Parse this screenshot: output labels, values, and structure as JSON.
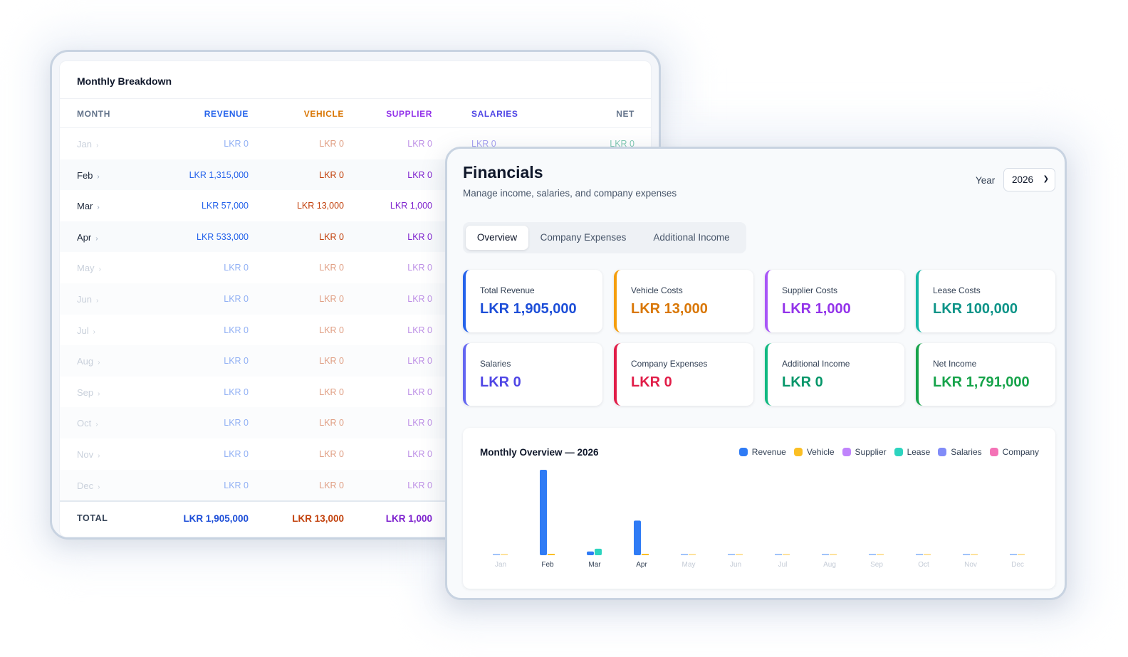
{
  "breakdown": {
    "title": "Monthly Breakdown",
    "headers": {
      "month": "MONTH",
      "revenue": "REVENUE",
      "vehicle": "VEHICLE",
      "supplier": "SUPPLIER",
      "salaries": "SALARIES",
      "net": "NET"
    },
    "rows": [
      {
        "month": "Jan",
        "revenue": "LKR 0",
        "vehicle": "LKR 0",
        "supplier": "LKR 0",
        "salaries": "LKR 0",
        "net": "LKR 0",
        "dim": true
      },
      {
        "month": "Feb",
        "revenue": "LKR 1,315,000",
        "vehicle": "LKR 0",
        "supplier": "LKR 0",
        "dim": false
      },
      {
        "month": "Mar",
        "revenue": "LKR 57,000",
        "vehicle": "LKR 13,000",
        "supplier": "LKR 1,000",
        "dim": false
      },
      {
        "month": "Apr",
        "revenue": "LKR 533,000",
        "vehicle": "LKR 0",
        "supplier": "LKR 0",
        "dim": false
      },
      {
        "month": "May",
        "revenue": "LKR 0",
        "vehicle": "LKR 0",
        "supplier": "LKR 0",
        "dim": true
      },
      {
        "month": "Jun",
        "revenue": "LKR 0",
        "vehicle": "LKR 0",
        "supplier": "LKR 0",
        "dim": true
      },
      {
        "month": "Jul",
        "revenue": "LKR 0",
        "vehicle": "LKR 0",
        "supplier": "LKR 0",
        "dim": true
      },
      {
        "month": "Aug",
        "revenue": "LKR 0",
        "vehicle": "LKR 0",
        "supplier": "LKR 0",
        "dim": true
      },
      {
        "month": "Sep",
        "revenue": "LKR 0",
        "vehicle": "LKR 0",
        "supplier": "LKR 0",
        "dim": true
      },
      {
        "month": "Oct",
        "revenue": "LKR 0",
        "vehicle": "LKR 0",
        "supplier": "LKR 0",
        "dim": true
      },
      {
        "month": "Nov",
        "revenue": "LKR 0",
        "vehicle": "LKR 0",
        "supplier": "LKR 0",
        "dim": true
      },
      {
        "month": "Dec",
        "revenue": "LKR 0",
        "vehicle": "LKR 0",
        "supplier": "LKR 0",
        "dim": true
      }
    ],
    "total": {
      "label": "TOTAL",
      "revenue": "LKR 1,905,000",
      "vehicle": "LKR 13,000",
      "supplier": "LKR 1,000"
    }
  },
  "financials": {
    "title": "Financials",
    "subtitle": "Manage income, salaries, and company expenses",
    "year_label": "Year",
    "year_value": "2026",
    "tabs": [
      {
        "label": "Overview",
        "active": true
      },
      {
        "label": "Company Expenses",
        "active": false
      },
      {
        "label": "Additional Income",
        "active": false
      }
    ],
    "cards": [
      {
        "label": "Total Revenue",
        "value": "LKR 1,905,000",
        "color": "#2563eb",
        "value_color": "#1d4ed8"
      },
      {
        "label": "Vehicle Costs",
        "value": "LKR 13,000",
        "color": "#f59e0b",
        "value_color": "#d97706"
      },
      {
        "label": "Supplier Costs",
        "value": "LKR 1,000",
        "color": "#a855f7",
        "value_color": "#9333ea"
      },
      {
        "label": "Lease Costs",
        "value": "LKR 100,000",
        "color": "#14b8a6",
        "value_color": "#0d9488"
      },
      {
        "label": "Salaries",
        "value": "LKR 0",
        "color": "#6366f1",
        "value_color": "#4f46e5"
      },
      {
        "label": "Company Expenses",
        "value": "LKR 0",
        "color": "#e11d48",
        "value_color": "#e11d48"
      },
      {
        "label": "Additional Income",
        "value": "LKR 0",
        "color": "#10b981",
        "value_color": "#059669"
      },
      {
        "label": "Net Income",
        "value": "LKR 1,791,000",
        "color": "#16a34a",
        "value_color": "#16a34a"
      }
    ]
  },
  "chart_data": {
    "type": "bar",
    "title": "Monthly Overview — 2026",
    "categories": [
      "Jan",
      "Feb",
      "Mar",
      "Apr",
      "May",
      "Jun",
      "Jul",
      "Aug",
      "Sep",
      "Oct",
      "Nov",
      "Dec"
    ],
    "active_months": [
      "Feb",
      "Mar",
      "Apr"
    ],
    "series": [
      {
        "name": "Revenue",
        "color": "#2f7bf5",
        "values": [
          0,
          1315000,
          57000,
          533000,
          0,
          0,
          0,
          0,
          0,
          0,
          0,
          0
        ]
      },
      {
        "name": "Vehicle",
        "color": "#fbbf24",
        "values": [
          0,
          0,
          13000,
          0,
          0,
          0,
          0,
          0,
          0,
          0,
          0,
          0
        ]
      },
      {
        "name": "Supplier",
        "color": "#c084fc",
        "values": [
          0,
          0,
          1000,
          0,
          0,
          0,
          0,
          0,
          0,
          0,
          0,
          0
        ]
      },
      {
        "name": "Lease",
        "color": "#2dd4bf",
        "values": [
          0,
          0,
          100000,
          0,
          0,
          0,
          0,
          0,
          0,
          0,
          0,
          0
        ]
      },
      {
        "name": "Salaries",
        "color": "#818cf8",
        "values": [
          0,
          0,
          0,
          0,
          0,
          0,
          0,
          0,
          0,
          0,
          0,
          0
        ]
      },
      {
        "name": "Company",
        "color": "#f472b6",
        "values": [
          0,
          0,
          0,
          0,
          0,
          0,
          0,
          0,
          0,
          0,
          0,
          0
        ]
      }
    ],
    "ylim": [
      0,
      1315000
    ],
    "grid": false,
    "legend": "top-right"
  }
}
